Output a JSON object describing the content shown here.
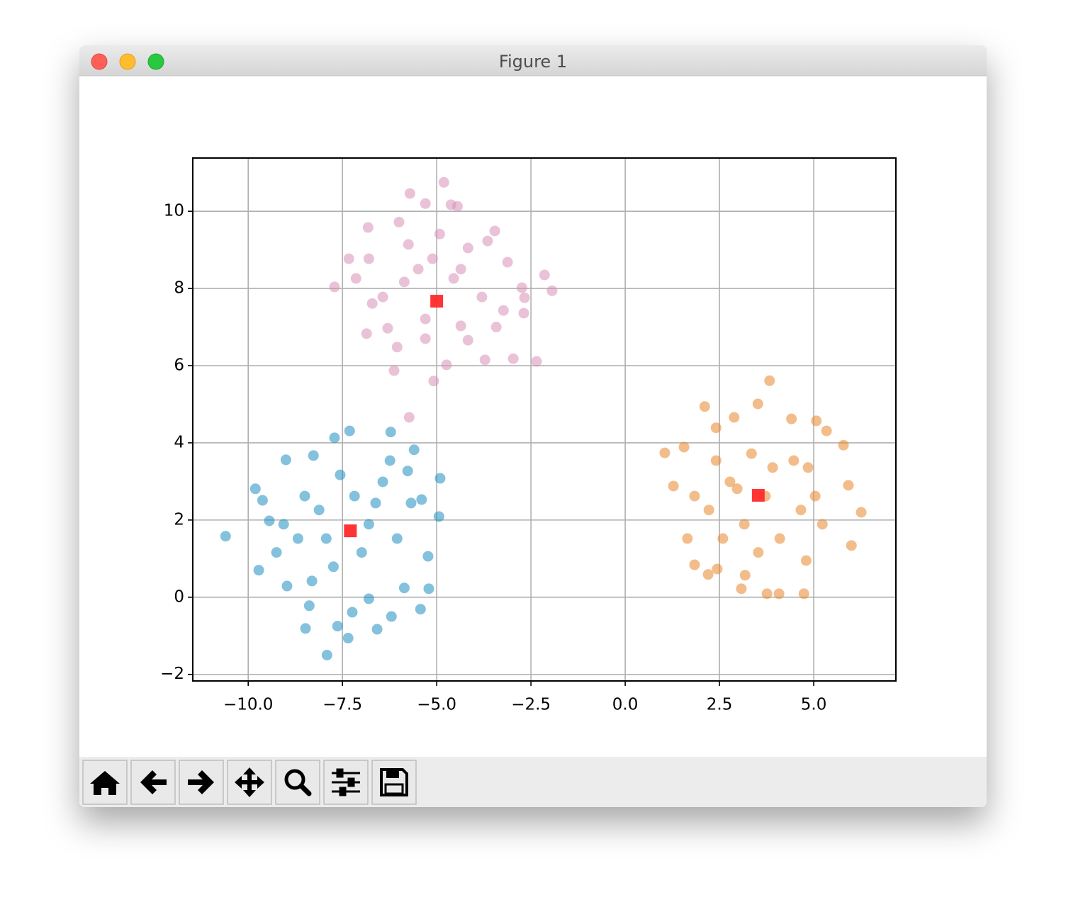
{
  "window": {
    "title": "Figure 1"
  },
  "chart_data": {
    "type": "scatter",
    "grid": true,
    "xlim": [
      -11.47,
      7.18
    ],
    "ylim": [
      -2.17,
      11.38
    ],
    "xticks": [
      {
        "value": -10,
        "label": "−10.0"
      },
      {
        "value": -7.5,
        "label": "−7.5"
      },
      {
        "value": -5,
        "label": "−5.0"
      },
      {
        "value": -2.5,
        "label": "−2.5"
      },
      {
        "value": 0,
        "label": "0.0"
      },
      2.5,
      {
        "value": 5,
        "label": "5.0"
      }
    ],
    "yticks": [
      {
        "value": -2,
        "label": "−2"
      },
      0,
      2,
      4,
      6,
      8,
      10
    ],
    "series": [
      {
        "color": "#1f8ebf",
        "marker": "o",
        "x": [
          -10.6,
          -9.81,
          -9.62,
          -9.72,
          -9.0,
          -7.71,
          -7.31,
          -6.22,
          -5.6,
          -4.91,
          -4.94,
          -5.23,
          -5.21,
          -5.43,
          -6.2,
          -6.58,
          -7.35,
          -7.91,
          -7.63,
          -8.48,
          -8.38,
          -8.97,
          -7.24,
          -8.27,
          -6.8,
          -5.86,
          -6.05,
          -6.62,
          -8.12,
          -8.68,
          -7.74,
          -6.99,
          -6.43,
          -7.56,
          -8.5,
          -9.06,
          -5.68,
          -7.93,
          -6.8,
          -6.24,
          -9.25,
          -8.31,
          -7.18,
          -5.4,
          -5.77,
          -9.44
        ],
        "y": [
          1.58,
          2.81,
          2.51,
          0.7,
          3.56,
          4.13,
          4.31,
          4.28,
          3.82,
          3.08,
          2.09,
          1.06,
          0.22,
          -0.31,
          -0.5,
          -0.83,
          -1.06,
          -1.5,
          -0.75,
          -0.81,
          -0.22,
          0.29,
          -0.39,
          3.67,
          -0.04,
          0.24,
          1.52,
          2.44,
          2.26,
          1.52,
          0.79,
          1.16,
          2.99,
          3.17,
          2.62,
          1.89,
          2.44,
          1.52,
          1.89,
          3.54,
          1.16,
          0.42,
          2.62,
          2.53,
          3.27,
          1.98
        ]
      },
      {
        "color": "#e8872a",
        "marker": "o",
        "x": [
          3.83,
          3.52,
          2.11,
          1.05,
          1.28,
          1.84,
          2.2,
          2.44,
          3.18,
          3.08,
          3.76,
          4.08,
          4.74,
          4.8,
          6.0,
          6.26,
          5.92,
          5.79,
          5.34,
          5.07,
          4.41,
          2.89,
          2.41,
          1.56,
          4.66,
          2.78,
          3.91,
          3.16,
          4.1,
          5.04,
          2.22,
          3.35,
          4.47,
          1.84,
          2.59,
          3.72,
          5.23,
          2.41,
          3.53,
          1.65,
          4.85,
          2.97
        ],
        "y": [
          5.61,
          5.01,
          4.94,
          3.74,
          2.88,
          0.84,
          0.59,
          0.73,
          0.57,
          0.22,
          0.09,
          0.09,
          0.09,
          0.95,
          1.34,
          2.2,
          2.9,
          3.94,
          4.31,
          4.57,
          4.62,
          4.66,
          4.39,
          3.89,
          2.26,
          2.99,
          3.36,
          1.89,
          1.52,
          2.62,
          2.26,
          3.72,
          3.54,
          2.62,
          1.52,
          2.62,
          1.89,
          3.54,
          1.16,
          1.52,
          3.36,
          2.81
        ]
      },
      {
        "color": "#d98fb8",
        "marker": "o",
        "x": [
          -4.81,
          -5.71,
          -5.3,
          -4.62,
          -4.45,
          -6.0,
          -6.82,
          -3.46,
          -7.33,
          -6.8,
          -7.71,
          -2.14,
          -1.94,
          -2.74,
          -3.12,
          -2.69,
          -2.35,
          -2.97,
          -3.72,
          -5.08,
          -6.13,
          -5.73,
          -6.86,
          -6.3,
          -5.3,
          -4.36,
          -3.42,
          -4.55,
          -5.49,
          -4.17,
          -4.92,
          -5.86,
          -3.8,
          -6.43,
          -5.3,
          -4.74,
          -6.05,
          -4.17,
          -3.23,
          -7.14,
          -3.65,
          -5.75,
          -4.36,
          -5.11,
          -6.71,
          -2.67
        ],
        "y": [
          10.75,
          10.46,
          10.2,
          10.17,
          10.13,
          9.72,
          9.58,
          9.49,
          8.77,
          8.77,
          8.04,
          8.35,
          7.94,
          8.02,
          8.68,
          7.36,
          6.11,
          6.18,
          6.15,
          5.6,
          5.87,
          4.66,
          6.83,
          6.97,
          6.7,
          7.03,
          7.0,
          8.26,
          8.5,
          9.05,
          9.41,
          8.17,
          7.78,
          7.78,
          7.21,
          6.02,
          6.48,
          6.66,
          7.43,
          8.26,
          9.23,
          9.14,
          8.5,
          8.77,
          7.61,
          7.76
        ]
      },
      {
        "color": "#ff2a2a",
        "marker": "s",
        "x": [
          -7.29,
          3.53,
          -5.0
        ],
        "y": [
          1.72,
          2.64,
          7.67
        ]
      }
    ]
  }
}
